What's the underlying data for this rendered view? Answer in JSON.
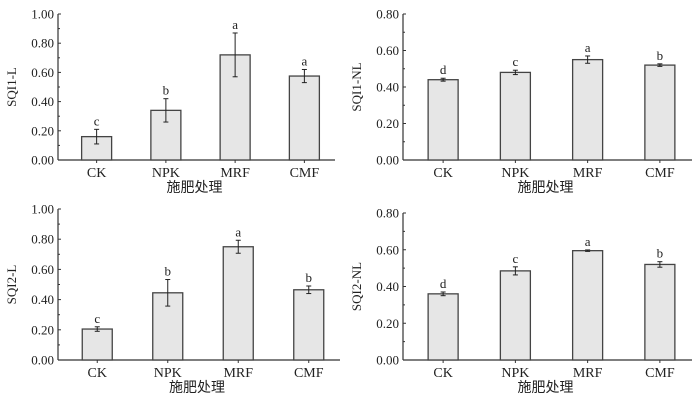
{
  "colors": {
    "bar_fill": "#e6e6e6",
    "bar_stroke": "#444444",
    "axis": "#333333"
  },
  "chart_data": [
    {
      "type": "bar",
      "ylabel": "SQI1-L",
      "xlabel": "施肥处理",
      "categories": [
        "CK",
        "NPK",
        "MRF",
        "CMF"
      ],
      "values": [
        0.16,
        0.34,
        0.72,
        0.575
      ],
      "errors": [
        0.05,
        0.08,
        0.15,
        0.045
      ],
      "significance": [
        "c",
        "b",
        "a",
        "a"
      ],
      "ylim": [
        0,
        1.0
      ],
      "yticks": [
        "0.00",
        "0.20",
        "0.40",
        "0.60",
        "0.80",
        "1.00"
      ]
    },
    {
      "type": "bar",
      "ylabel": "SQI1-NL",
      "xlabel": "施肥处理",
      "categories": [
        "CK",
        "NPK",
        "MRF",
        "CMF"
      ],
      "values": [
        0.44,
        0.48,
        0.55,
        0.52
      ],
      "errors": [
        0.008,
        0.012,
        0.02,
        0.007
      ],
      "significance": [
        "d",
        "c",
        "a",
        "b"
      ],
      "ylim": [
        0,
        0.8
      ],
      "yticks": [
        "0.00",
        "0.20",
        "0.40",
        "0.60",
        "0.80"
      ]
    },
    {
      "type": "bar",
      "ylabel": "SQI2-L",
      "xlabel": "施肥处理",
      "categories": [
        "CK",
        "NPK",
        "MRF",
        "CMF"
      ],
      "values": [
        0.205,
        0.445,
        0.75,
        0.465
      ],
      "errors": [
        0.015,
        0.088,
        0.043,
        0.025
      ],
      "significance": [
        "c",
        "b",
        "a",
        "b"
      ],
      "ylim": [
        0,
        1.0
      ],
      "yticks": [
        "0.00",
        "0.20",
        "0.40",
        "0.60",
        "0.80",
        "1.00"
      ]
    },
    {
      "type": "bar",
      "ylabel": "SQI2-NL",
      "xlabel": "施肥处理",
      "categories": [
        "CK",
        "NPK",
        "MRF",
        "CMF"
      ],
      "values": [
        0.36,
        0.485,
        0.595,
        0.52
      ],
      "errors": [
        0.01,
        0.022,
        0.004,
        0.015
      ],
      "significance": [
        "d",
        "c",
        "a",
        "b"
      ],
      "ylim": [
        0,
        0.8
      ],
      "yticks": [
        "0.00",
        "0.20",
        "0.40",
        "0.60",
        "0.80"
      ]
    }
  ]
}
